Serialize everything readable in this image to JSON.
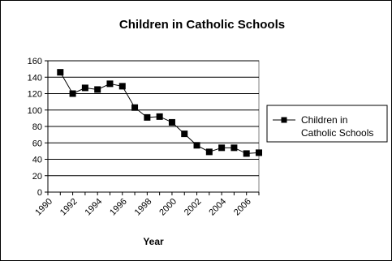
{
  "chart_data": {
    "type": "line",
    "title": "Children in Catholic Schools",
    "xlabel": "Year",
    "ylabel": "",
    "x": [
      1991,
      1992,
      1993,
      1994,
      1995,
      1996,
      1997,
      1998,
      1999,
      2000,
      2001,
      2002,
      2003,
      2004,
      2005,
      2006,
      2007
    ],
    "series": [
      {
        "name": "Children in Catholic Schools",
        "values": [
          146,
          120,
          127,
          125,
          132,
          129,
          103,
          91,
          92,
          85,
          71,
          57,
          49,
          54,
          54,
          47,
          48
        ],
        "color": "#000000",
        "marker": "square"
      }
    ],
    "ylim": [
      0,
      160
    ],
    "yticks": [
      0,
      20,
      40,
      60,
      80,
      100,
      120,
      140,
      160
    ],
    "ytick_labels": [
      "0",
      "20",
      "40",
      "60",
      "80",
      "100",
      "120",
      "140",
      "160"
    ],
    "xlim": [
      1990,
      2007
    ],
    "xticks": [
      1990,
      1992,
      1994,
      1996,
      1998,
      2000,
      2002,
      2004,
      2006
    ],
    "xtick_labels": [
      "1990",
      "1992",
      "1994",
      "1996",
      "1998",
      "2000",
      "2002",
      "2004",
      "2006"
    ],
    "grid": "horizontal",
    "legend_position": "right",
    "legend_lines": [
      "Children in",
      "Catholic Schools"
    ]
  }
}
